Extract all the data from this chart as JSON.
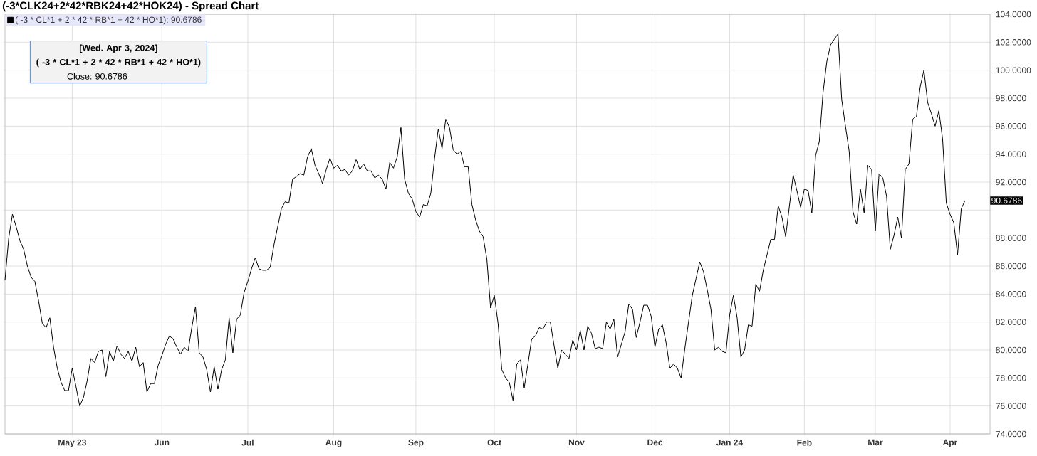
{
  "chart_data": {
    "type": "line",
    "title": "(-3*CLK24+2*42*RBK24+42*HOK24) - Spread Chart",
    "categories": [
      null,
      null,
      null,
      null,
      null,
      null,
      null,
      null,
      null,
      null,
      null,
      null,
      null,
      null,
      null,
      null,
      null,
      null,
      "May 23",
      null,
      null,
      null,
      null,
      null,
      null,
      null,
      null,
      null,
      null,
      null,
      null,
      null,
      null,
      null,
      null,
      null,
      null,
      null,
      null,
      null,
      null,
      null,
      "Jun",
      null,
      null,
      null,
      null,
      null,
      null,
      null,
      null,
      null,
      null,
      null,
      null,
      null,
      null,
      null,
      null,
      null,
      null,
      null,
      null,
      null,
      null,
      "Jul",
      null,
      null,
      null,
      null,
      null,
      null,
      null,
      null,
      null,
      null,
      null,
      null,
      null,
      null,
      null,
      null,
      null,
      null,
      null,
      null,
      null,
      null,
      "Aug",
      null,
      null,
      null,
      null,
      null,
      null,
      null,
      null,
      null,
      null,
      null,
      null,
      null,
      null,
      null,
      null,
      null,
      null,
      null,
      null,
      null,
      "Sep",
      null,
      null,
      null,
      null,
      null,
      null,
      null,
      null,
      null,
      null,
      null,
      null,
      null,
      null,
      null,
      null,
      null,
      null,
      null,
      null,
      "Oct",
      null,
      null,
      null,
      null,
      null,
      null,
      null,
      null,
      null,
      null,
      null,
      null,
      null,
      null,
      null,
      null,
      null,
      null,
      null,
      null,
      null,
      "Nov",
      null,
      null,
      null,
      null,
      null,
      null,
      null,
      null,
      null,
      null,
      null,
      null,
      null,
      null,
      null,
      null,
      null,
      null,
      null,
      null,
      "Dec",
      null,
      null,
      null,
      null,
      null,
      null,
      null,
      null,
      null,
      null,
      null,
      null,
      null,
      null,
      null,
      null,
      null,
      null,
      null,
      "Jan 24",
      null,
      null,
      null,
      null,
      null,
      null,
      null,
      null,
      null,
      null,
      null,
      null,
      null,
      null,
      null,
      null,
      null,
      null,
      null,
      "Feb",
      null,
      null,
      null,
      null,
      null,
      null,
      null,
      null,
      null,
      null,
      null,
      null,
      null,
      null,
      null,
      null,
      null,
      null,
      "Mar",
      null,
      null,
      null,
      null,
      null,
      null,
      null,
      null,
      null,
      null,
      null,
      null,
      null,
      null,
      null,
      null,
      null,
      null,
      null,
      "Apr",
      null,
      null,
      null,
      null
    ],
    "series": [
      {
        "name": "( -3 * CL*1 + 2 * 42 * RB*1 + 42 * HO*1): 90.6786",
        "color": "#000000",
        "values": [
          85.0,
          88.0,
          89.7,
          88.8,
          87.8,
          87.2,
          86.0,
          85.2,
          84.9,
          83.5,
          81.9,
          81.6,
          82.3,
          80.2,
          78.7,
          77.7,
          77.1,
          77.1,
          78.7,
          77.4,
          76.0,
          76.6,
          77.8,
          79.4,
          79.1,
          79.9,
          80.0,
          78.1,
          79.9,
          79.2,
          80.3,
          79.7,
          79.4,
          79.9,
          79.2,
          80.2,
          78.8,
          79.1,
          77.0,
          77.6,
          77.6,
          78.9,
          79.6,
          80.4,
          81.0,
          80.8,
          80.2,
          79.7,
          80.2,
          79.9,
          81.6,
          83.1,
          79.8,
          79.5,
          78.6,
          77.0,
          78.8,
          77.2,
          78.6,
          79.3,
          82.3,
          79.8,
          82.2,
          82.5,
          84.1,
          84.9,
          85.8,
          86.6,
          85.8,
          85.7,
          85.7,
          85.9,
          87.5,
          88.8,
          90.1,
          90.6,
          90.5,
          92.2,
          92.4,
          92.6,
          92.5,
          93.8,
          94.4,
          93.2,
          92.6,
          91.9,
          92.9,
          93.7,
          93.0,
          93.2,
          92.8,
          92.9,
          92.5,
          92.8,
          93.6,
          92.9,
          93.3,
          92.8,
          92.8,
          92.3,
          92.5,
          92.2,
          91.5,
          93.4,
          93.0,
          93.8,
          95.9,
          92.2,
          91.2,
          90.8,
          89.9,
          89.5,
          90.4,
          90.3,
          91.2,
          93.7,
          95.8,
          94.4,
          96.5,
          95.9,
          94.3,
          94.0,
          94.2,
          93.1,
          93.1,
          90.4,
          89.3,
          88.5,
          88.1,
          86.5,
          83.0,
          83.9,
          81.9,
          78.6,
          78.0,
          77.7,
          76.4,
          79.0,
          79.3,
          77.3,
          79.0,
          80.8,
          81.0,
          81.6,
          81.5,
          82.0,
          82.0,
          80.3,
          78.7,
          80.0,
          79.7,
          79.4,
          80.7,
          80.0,
          81.4,
          80.0,
          81.7,
          81.2,
          80.1,
          80.2,
          80.1,
          82.0,
          81.5,
          82.2,
          79.5,
          80.4,
          81.3,
          83.3,
          82.9,
          80.9,
          82.0,
          83.2,
          83.2,
          82.4,
          80.2,
          81.5,
          81.8,
          80.5,
          78.7,
          79.0,
          78.7,
          78.0,
          80.1,
          82.0,
          83.9,
          85.1,
          86.3,
          85.6,
          84.3,
          82.9,
          80.0,
          80.2,
          79.9,
          79.8,
          82.5,
          83.9,
          82.3,
          79.5,
          80.0,
          81.8,
          81.7,
          84.7,
          84.2,
          85.7,
          86.8,
          87.9,
          87.9,
          90.3,
          89.5,
          88.1,
          90.3,
          92.5,
          91.4,
          90.2,
          91.5,
          91.4,
          89.8,
          93.9,
          94.9,
          98.4,
          100.6,
          101.8,
          102.2,
          102.6,
          97.9,
          96.0,
          94.2,
          89.9,
          89.0,
          91.5,
          89.8,
          93.2,
          92.9,
          88.5,
          92.6,
          92.3,
          91.0,
          87.2,
          88.2,
          89.5,
          88.0,
          92.9,
          93.3,
          96.5,
          96.7,
          98.8,
          100.0,
          97.7,
          96.9,
          96.0,
          97.1,
          95.1,
          90.5,
          89.7,
          89.1,
          86.8,
          90.1,
          90.6786
        ]
      }
    ],
    "ylim": [
      74,
      104
    ],
    "yticks": [
      {
        "value": 74,
        "label": "74.0000"
      },
      {
        "value": 76,
        "label": "76.0000"
      },
      {
        "value": 78,
        "label": "78.0000"
      },
      {
        "value": 80,
        "label": "80.0000"
      },
      {
        "value": 82,
        "label": "82.0000"
      },
      {
        "value": 84,
        "label": "84.0000"
      },
      {
        "value": 86,
        "label": "86.0000"
      },
      {
        "value": 88,
        "label": "88.0000"
      },
      {
        "value": 90,
        "label": null
      },
      {
        "value": 92,
        "label": "92.0000"
      },
      {
        "value": 94,
        "label": "94.0000"
      },
      {
        "value": 96,
        "label": "96.0000"
      },
      {
        "value": 98,
        "label": "98.0000"
      },
      {
        "value": 100,
        "label": "100.0000"
      },
      {
        "value": 102,
        "label": "102.0000"
      },
      {
        "value": 104,
        "label": "104.0000"
      }
    ],
    "grid": true,
    "legend": "top left",
    "annotations": [
      "[Wed. Apr 3, 2024]",
      "( -3 * CL*1 + 2 * 42 * RB*1 + 42 * HO*1)",
      "Close: 90.6786",
      "90.6786"
    ]
  }
}
